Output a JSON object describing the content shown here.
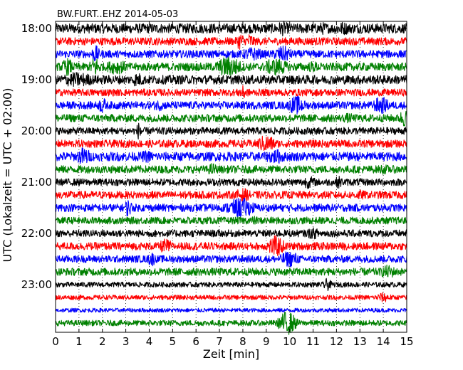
{
  "chart_data": {
    "type": "line",
    "title": "BW.FURT..EHZ 2014-05-03",
    "xlabel": "Zeit  [min]",
    "ylabel": "UTC (Lokalzeit = UTC + 02:00)",
    "xlim": [
      0,
      15
    ],
    "x_ticks": [
      0,
      1,
      2,
      3,
      4,
      5,
      6,
      7,
      8,
      9,
      10,
      11,
      12,
      13,
      14,
      15
    ],
    "x_tick_labels": [
      "0",
      "1",
      "2",
      "3",
      "4",
      "5",
      "6",
      "7",
      "8",
      "9",
      "10",
      "11",
      "12",
      "13",
      "14",
      "15"
    ],
    "y_tick_labels": [
      "18:00",
      "19:00",
      "20:00",
      "21:00",
      "22:00",
      "23:00"
    ],
    "rows_per_hour": 4,
    "grid": "vertical dotted",
    "color_cycle": [
      "#000000",
      "#ff0000",
      "#0000ff",
      "#008000"
    ],
    "series": [
      {
        "row": 0,
        "start": "18:00",
        "color": "#000000",
        "amplitude": 0.38,
        "events": [
          {
            "t": 9.7,
            "amp": 0.6,
            "dur": 0.5
          },
          {
            "t": 11.4,
            "amp": 0.5,
            "dur": 0.6
          },
          {
            "t": 12.2,
            "amp": 0.55,
            "dur": 0.8
          }
        ]
      },
      {
        "row": 1,
        "start": "18:15",
        "color": "#ff0000",
        "amplitude": 0.3,
        "events": [
          {
            "t": 7.9,
            "amp": 0.7,
            "dur": 0.3
          },
          {
            "t": 8.3,
            "amp": 0.65,
            "dur": 0.3
          }
        ]
      },
      {
        "row": 2,
        "start": "18:30",
        "color": "#0000ff",
        "amplitude": 0.3,
        "events": [
          {
            "t": 1.7,
            "amp": 0.7,
            "dur": 0.3
          },
          {
            "t": 8.4,
            "amp": 0.55,
            "dur": 0.8
          },
          {
            "t": 9.7,
            "amp": 0.65,
            "dur": 0.7
          }
        ]
      },
      {
        "row": 3,
        "start": "18:45",
        "color": "#008000",
        "amplitude": 0.32,
        "events": [
          {
            "t": 0.5,
            "amp": 0.7,
            "dur": 0.4
          },
          {
            "t": 1.7,
            "amp": 0.8,
            "dur": 0.4
          },
          {
            "t": 2.6,
            "amp": 0.6,
            "dur": 0.8
          },
          {
            "t": 7.4,
            "amp": 0.85,
            "dur": 0.9
          },
          {
            "t": 9.4,
            "amp": 0.7,
            "dur": 0.9
          },
          {
            "t": 11.0,
            "amp": 0.45,
            "dur": 0.6
          }
        ]
      },
      {
        "row": 4,
        "start": "19:00",
        "color": "#000000",
        "amplitude": 0.35,
        "events": [
          {
            "t": 0.9,
            "amp": 0.6,
            "dur": 1.4
          },
          {
            "t": 3.5,
            "amp": 0.55,
            "dur": 0.6
          }
        ]
      },
      {
        "row": 5,
        "start": "19:15",
        "color": "#ff0000",
        "amplitude": 0.28,
        "events": [
          {
            "t": 8.0,
            "amp": 0.55,
            "dur": 0.4
          }
        ]
      },
      {
        "row": 6,
        "start": "19:30",
        "color": "#0000ff",
        "amplitude": 0.3,
        "events": [
          {
            "t": 2.0,
            "amp": 0.65,
            "dur": 0.3
          },
          {
            "t": 4.4,
            "amp": 0.45,
            "dur": 0.5
          },
          {
            "t": 10.3,
            "amp": 0.75,
            "dur": 0.6
          },
          {
            "t": 13.9,
            "amp": 0.7,
            "dur": 0.6
          }
        ]
      },
      {
        "row": 7,
        "start": "19:45",
        "color": "#008000",
        "amplitude": 0.3,
        "events": [
          {
            "t": 14.9,
            "amp": 0.7,
            "dur": 0.4
          },
          {
            "t": 12.5,
            "amp": 0.4,
            "dur": 0.6
          }
        ]
      },
      {
        "row": 8,
        "start": "20:00",
        "color": "#000000",
        "amplitude": 0.28,
        "events": [
          {
            "t": 3.6,
            "amp": 0.75,
            "dur": 0.25
          }
        ]
      },
      {
        "row": 9,
        "start": "20:15",
        "color": "#ff0000",
        "amplitude": 0.3,
        "events": [
          {
            "t": 9.0,
            "amp": 0.7,
            "dur": 0.7
          }
        ]
      },
      {
        "row": 10,
        "start": "20:30",
        "color": "#0000ff",
        "amplitude": 0.35,
        "events": [
          {
            "t": 1.2,
            "amp": 0.75,
            "dur": 0.5
          },
          {
            "t": 3.9,
            "amp": 0.5,
            "dur": 0.6
          },
          {
            "t": 9.4,
            "amp": 0.6,
            "dur": 0.8
          }
        ]
      },
      {
        "row": 11,
        "start": "20:45",
        "color": "#008000",
        "amplitude": 0.3,
        "events": [
          {
            "t": 6.7,
            "amp": 0.5,
            "dur": 0.4
          },
          {
            "t": 14.0,
            "amp": 0.4,
            "dur": 0.6
          }
        ]
      },
      {
        "row": 12,
        "start": "21:00",
        "color": "#000000",
        "amplitude": 0.28,
        "events": [
          {
            "t": 10.8,
            "amp": 0.5,
            "dur": 0.6
          },
          {
            "t": 12.1,
            "amp": 0.5,
            "dur": 0.3
          }
        ]
      },
      {
        "row": 13,
        "start": "21:15",
        "color": "#ff0000",
        "amplitude": 0.3,
        "events": [
          {
            "t": 8.0,
            "amp": 0.55,
            "dur": 0.6
          },
          {
            "t": 13.0,
            "amp": 0.4,
            "dur": 0.6
          }
        ]
      },
      {
        "row": 14,
        "start": "21:30",
        "color": "#0000ff",
        "amplitude": 0.3,
        "events": [
          {
            "t": 3.1,
            "amp": 0.7,
            "dur": 0.3
          },
          {
            "t": 7.9,
            "amp": 0.8,
            "dur": 1.0
          }
        ]
      },
      {
        "row": 15,
        "start": "21:45",
        "color": "#008000",
        "amplitude": 0.28,
        "events": [
          {
            "t": 8.5,
            "amp": 0.35,
            "dur": 0.5
          }
        ]
      },
      {
        "row": 16,
        "start": "22:00",
        "color": "#000000",
        "amplitude": 0.28,
        "events": [
          {
            "t": 11.0,
            "amp": 0.45,
            "dur": 0.6
          }
        ]
      },
      {
        "row": 17,
        "start": "22:15",
        "color": "#ff0000",
        "amplitude": 0.3,
        "events": [
          {
            "t": 4.7,
            "amp": 0.6,
            "dur": 0.5
          },
          {
            "t": 9.4,
            "amp": 0.85,
            "dur": 0.6
          }
        ]
      },
      {
        "row": 18,
        "start": "22:30",
        "color": "#0000ff",
        "amplitude": 0.28,
        "events": [
          {
            "t": 4.1,
            "amp": 0.6,
            "dur": 0.3
          },
          {
            "t": 10.0,
            "amp": 0.65,
            "dur": 0.7
          }
        ]
      },
      {
        "row": 19,
        "start": "22:45",
        "color": "#008000",
        "amplitude": 0.3,
        "events": [
          {
            "t": 14.2,
            "amp": 0.55,
            "dur": 0.6
          }
        ]
      },
      {
        "row": 20,
        "start": "23:00",
        "color": "#000000",
        "amplitude": 0.2,
        "events": [
          {
            "t": 11.6,
            "amp": 0.5,
            "dur": 0.3
          }
        ]
      },
      {
        "row": 21,
        "start": "23:15",
        "color": "#ff0000",
        "amplitude": 0.18,
        "events": [
          {
            "t": 14.0,
            "amp": 0.4,
            "dur": 0.6
          }
        ]
      },
      {
        "row": 22,
        "start": "23:30",
        "color": "#0000ff",
        "amplitude": 0.16,
        "events": []
      },
      {
        "row": 23,
        "start": "23:45",
        "color": "#008000",
        "amplitude": 0.22,
        "events": [
          {
            "t": 9.9,
            "amp": 0.95,
            "dur": 0.6
          }
        ]
      }
    ]
  }
}
